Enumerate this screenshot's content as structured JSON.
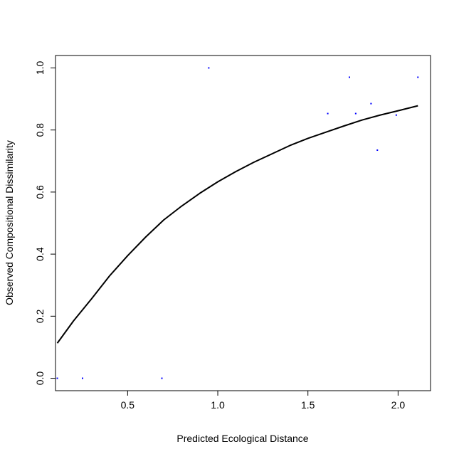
{
  "chart_data": {
    "type": "scatter",
    "title": "",
    "xlabel": "Predicted Ecological Distance",
    "ylabel": "Observed Compositional Dissimilarity",
    "xlim": [
      0.1,
      2.18
    ],
    "ylim": [
      -0.04,
      1.04
    ],
    "x_ticks": [
      0.5,
      1.0,
      1.5,
      2.0
    ],
    "x_tick_labels": [
      "0.5",
      "1.0",
      "1.5",
      "2.0"
    ],
    "y_ticks": [
      0.0,
      0.2,
      0.4,
      0.6,
      0.8,
      1.0
    ],
    "y_tick_labels": [
      "0.0",
      "0.2",
      "0.4",
      "0.6",
      "0.8",
      "1.0"
    ],
    "grid": false,
    "point_color": "#0000ff",
    "line_color": "#000000",
    "points": [
      {
        "x": 0.11,
        "y": 0.0
      },
      {
        "x": 0.25,
        "y": 0.0
      },
      {
        "x": 0.69,
        "y": 0.0
      },
      {
        "x": 0.95,
        "y": 1.0
      },
      {
        "x": 1.61,
        "y": 0.853
      },
      {
        "x": 1.73,
        "y": 0.97
      },
      {
        "x": 1.765,
        "y": 0.853
      },
      {
        "x": 1.85,
        "y": 0.885
      },
      {
        "x": 1.885,
        "y": 0.735
      },
      {
        "x": 1.99,
        "y": 0.848
      },
      {
        "x": 2.11,
        "y": 0.97
      }
    ],
    "fitted_curve": [
      {
        "x": 0.11,
        "y": 0.113
      },
      {
        "x": 0.2,
        "y": 0.185
      },
      {
        "x": 0.3,
        "y": 0.256
      },
      {
        "x": 0.4,
        "y": 0.33
      },
      {
        "x": 0.5,
        "y": 0.395
      },
      {
        "x": 0.6,
        "y": 0.455
      },
      {
        "x": 0.7,
        "y": 0.51
      },
      {
        "x": 0.8,
        "y": 0.555
      },
      {
        "x": 0.9,
        "y": 0.596
      },
      {
        "x": 1.0,
        "y": 0.633
      },
      {
        "x": 1.1,
        "y": 0.666
      },
      {
        "x": 1.2,
        "y": 0.696
      },
      {
        "x": 1.3,
        "y": 0.723
      },
      {
        "x": 1.4,
        "y": 0.75
      },
      {
        "x": 1.5,
        "y": 0.773
      },
      {
        "x": 1.6,
        "y": 0.793
      },
      {
        "x": 1.7,
        "y": 0.813
      },
      {
        "x": 1.8,
        "y": 0.832
      },
      {
        "x": 1.9,
        "y": 0.848
      },
      {
        "x": 2.0,
        "y": 0.862
      },
      {
        "x": 2.11,
        "y": 0.878
      }
    ]
  }
}
